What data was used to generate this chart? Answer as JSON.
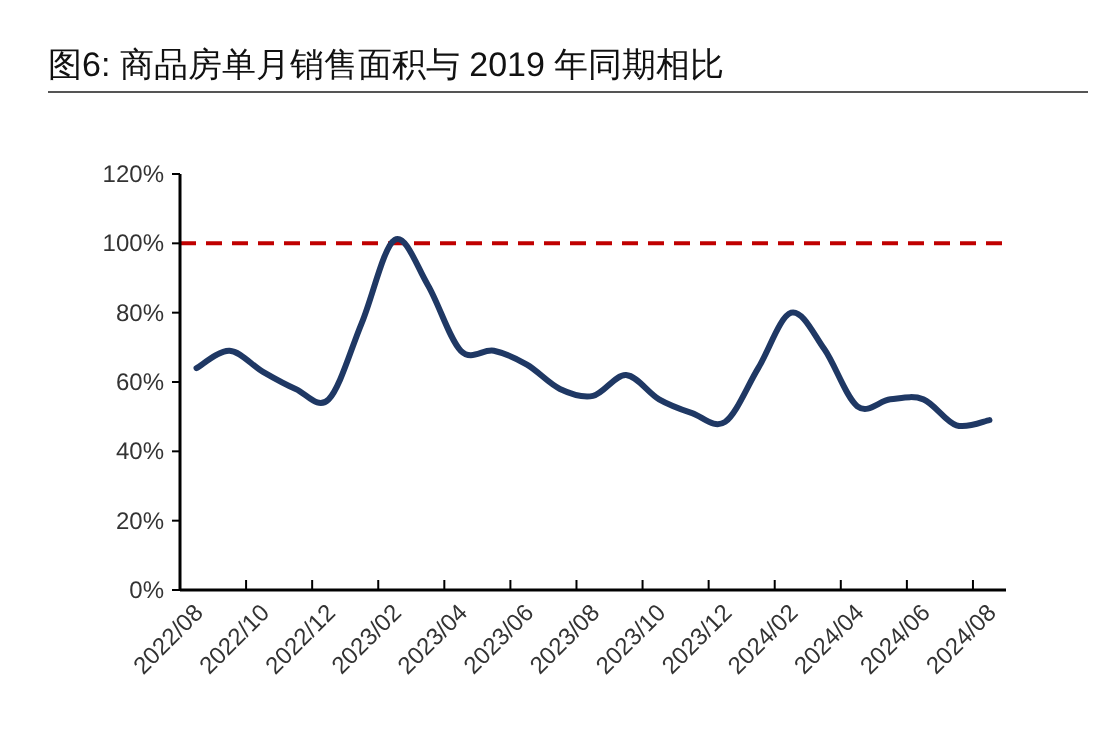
{
  "chart_data": {
    "type": "line",
    "title": "图6: 商品房单月销售面积与 2019 年同期相比",
    "categories": [
      "2022/08",
      null,
      "2022/10",
      null,
      "2022/12",
      null,
      "2023/02",
      null,
      "2023/04",
      null,
      "2023/06",
      null,
      "2023/08",
      null,
      "2023/10",
      null,
      "2023/12",
      null,
      "2024/02",
      null,
      "2024/04",
      null,
      "2024/06",
      null,
      "2024/08"
    ],
    "series": [
      {
        "color": "#1f3864",
        "values": [
          64,
          69,
          63,
          58,
          55,
          77,
          101,
          88,
          69,
          69,
          65,
          58,
          56,
          62,
          55,
          51,
          48.5,
          64,
          80,
          69.5,
          53,
          55,
          55,
          47.5,
          49
        ]
      }
    ],
    "ylim": [
      0,
      120
    ],
    "yticks": [
      {
        "value": 0,
        "label": "0%"
      },
      {
        "value": 20,
        "label": "20%"
      },
      {
        "value": 40,
        "label": "40%"
      },
      {
        "value": 60,
        "label": "60%"
      },
      {
        "value": 80,
        "label": "80%"
      },
      {
        "value": 100,
        "label": "100%"
      },
      {
        "value": 120,
        "label": "120%"
      }
    ],
    "ref_lines": [
      {
        "axis": "y",
        "value": 100,
        "color": "#c00000",
        "line_style": "dashed"
      }
    ],
    "grid": false,
    "marker": "none",
    "line_style": "solid"
  }
}
